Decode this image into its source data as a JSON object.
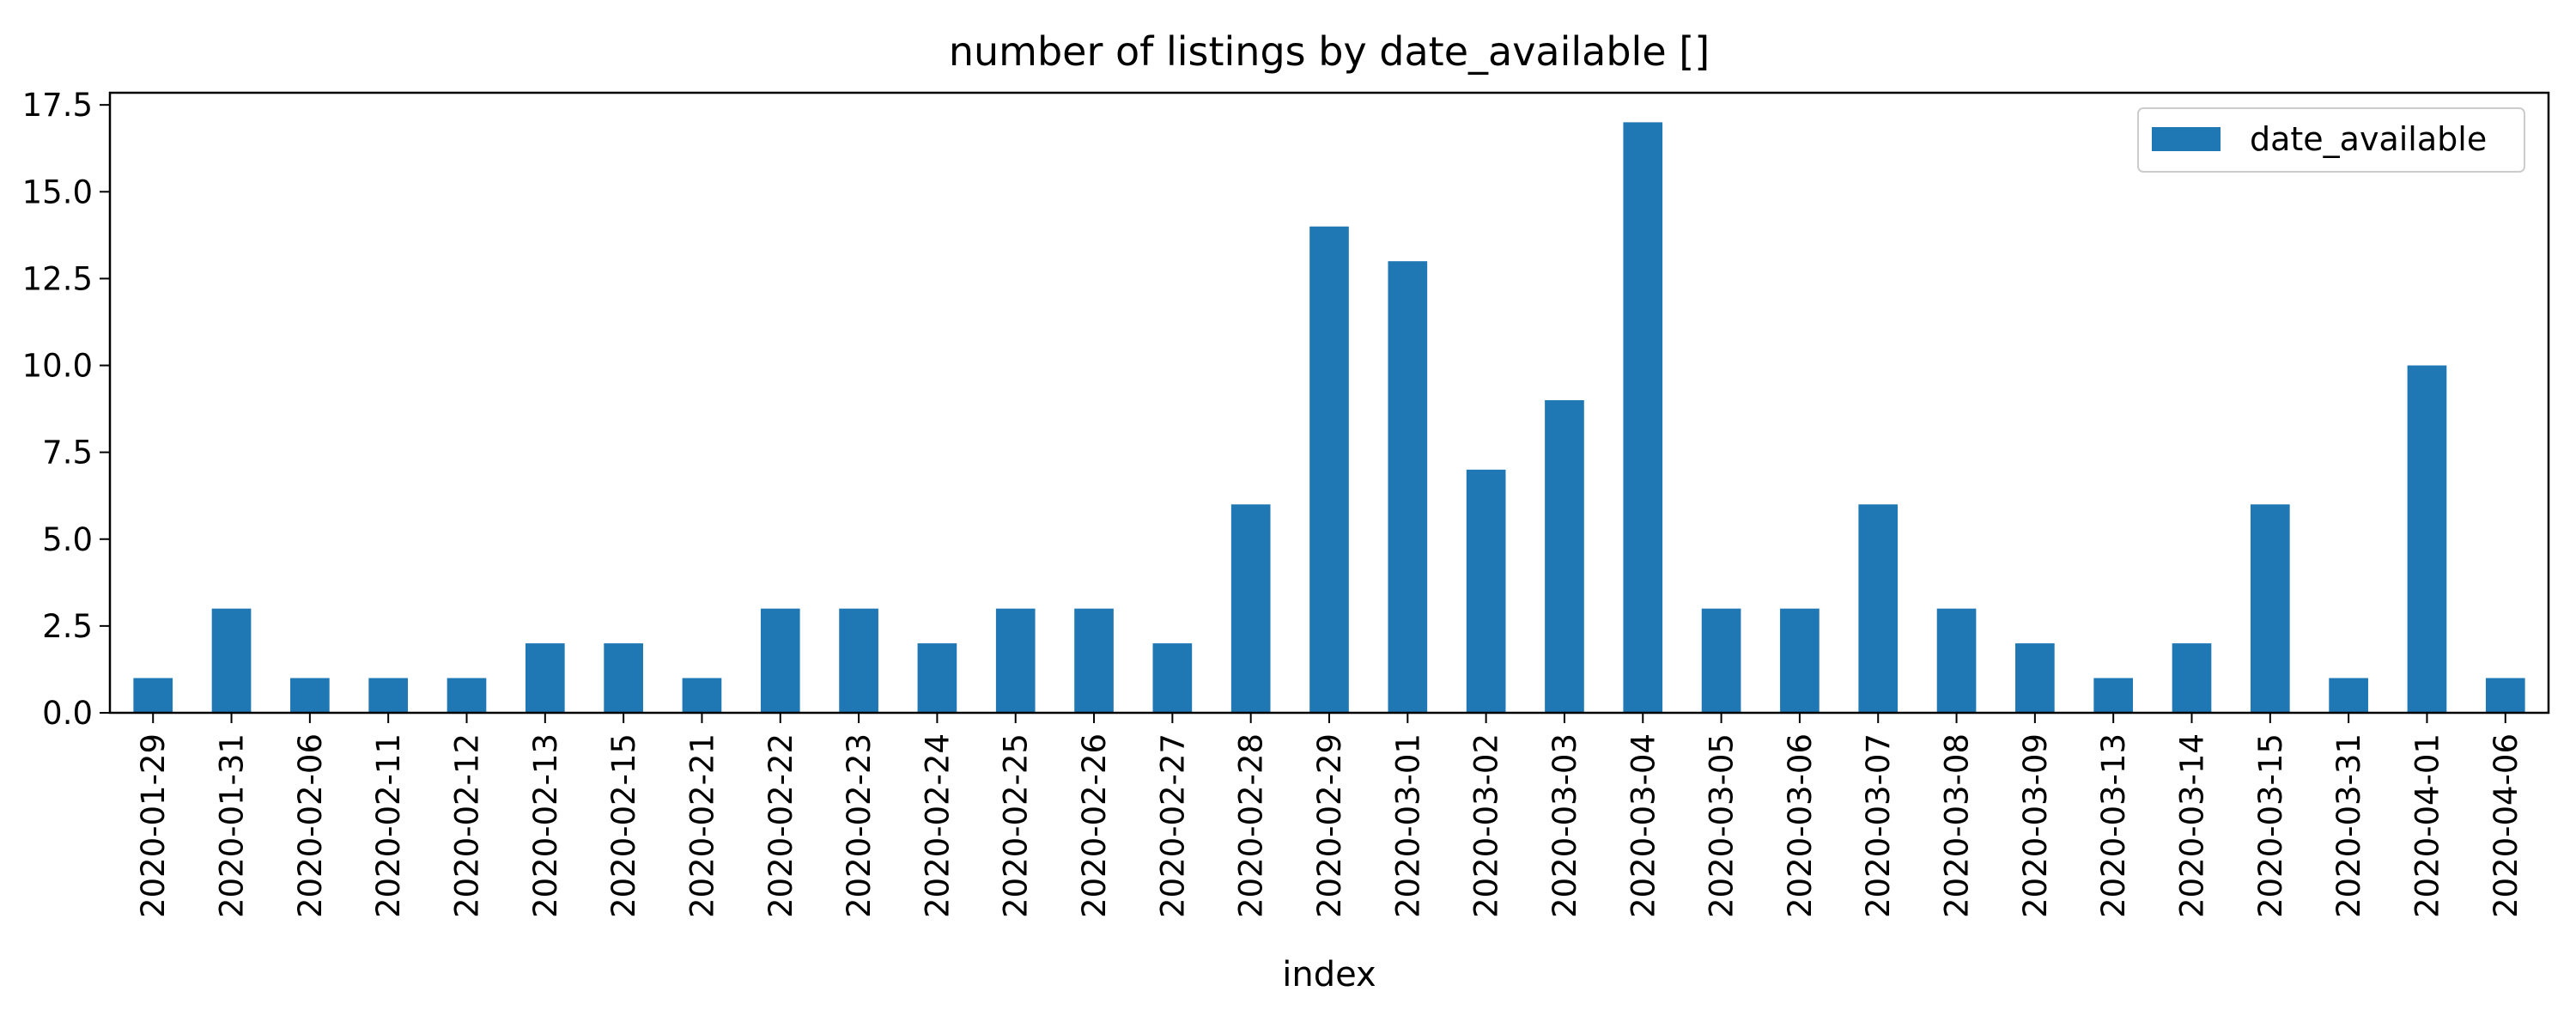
{
  "chart_data": {
    "type": "bar",
    "title": "number of listings by date_available []",
    "xlabel": "index",
    "ylabel": "",
    "categories": [
      "2020-01-29",
      "2020-01-31",
      "2020-02-06",
      "2020-02-11",
      "2020-02-12",
      "2020-02-13",
      "2020-02-15",
      "2020-02-21",
      "2020-02-22",
      "2020-02-23",
      "2020-02-24",
      "2020-02-25",
      "2020-02-26",
      "2020-02-27",
      "2020-02-28",
      "2020-02-29",
      "2020-03-01",
      "2020-03-02",
      "2020-03-03",
      "2020-03-04",
      "2020-03-05",
      "2020-03-06",
      "2020-03-07",
      "2020-03-08",
      "2020-03-09",
      "2020-03-13",
      "2020-03-14",
      "2020-03-15",
      "2020-03-31",
      "2020-04-01",
      "2020-04-06"
    ],
    "series": [
      {
        "name": "date_available",
        "color": "#1f77b4",
        "values": [
          1,
          3,
          1,
          1,
          1,
          2,
          2,
          1,
          3,
          3,
          2,
          3,
          3,
          2,
          6,
          14,
          13,
          7,
          9,
          17,
          3,
          3,
          6,
          3,
          2,
          1,
          2,
          6,
          1,
          10,
          1
        ]
      }
    ],
    "ylim": [
      0,
      17.85
    ],
    "yticks": [
      "0.0",
      "2.5",
      "5.0",
      "7.5",
      "10.0",
      "12.5",
      "15.0",
      "17.5"
    ],
    "grid": false,
    "legend_position": "top-right"
  }
}
